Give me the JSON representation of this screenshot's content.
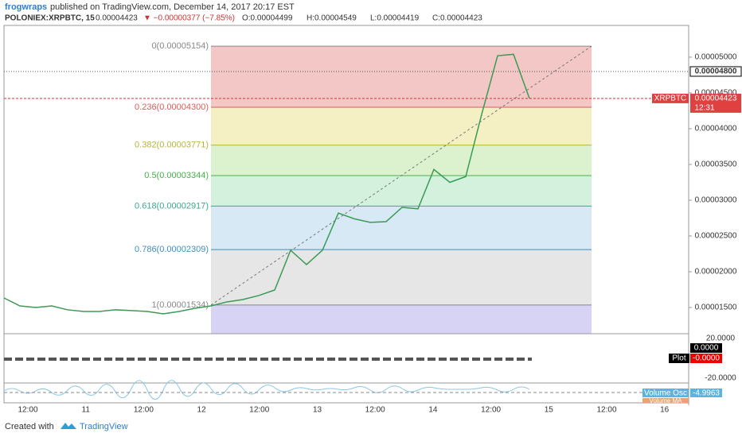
{
  "header": {
    "publisher": "frogwraps",
    "published": "published on TradingView.com, December 14, 2017 20:17 EST",
    "symbol": "POLONIEX:XRPBTC, 15",
    "last": "0.00004423",
    "change": "▼ −0.00000377 (−7.85%)",
    "ohlc": [
      "O:0.00004499",
      "H:0.00004549",
      "L:0.00004419",
      "C:0.00004423"
    ]
  },
  "chart_data": {
    "type": "line",
    "series": [
      {
        "name": "XRPBTC",
        "color": "#3a9b55",
        "values": [
          1.633e-05,
          1.522e-05,
          1.5e-05,
          1.522e-05,
          1.467e-05,
          1.444e-05,
          1.444e-05,
          1.467e-05,
          1.456e-05,
          1.444e-05,
          1.411e-05,
          1.444e-05,
          1.489e-05,
          1.522e-05,
          1.578e-05,
          1.611e-05,
          1.667e-05,
          1.744e-05,
          2.3e-05,
          2.1e-05,
          2.3e-05,
          2.82e-05,
          2.74e-05,
          2.69e-05,
          2.7e-05,
          2.9e-05,
          2.88e-05,
          3.43e-05,
          3.25e-05,
          3.33e-05,
          4.2e-05,
          5.02e-05,
          5.04e-05,
          4.423e-05
        ]
      }
    ],
    "ylim": [
      1.133e-05,
      5.444e-05
    ],
    "yticks": [
      {
        "value": 1.5e-05,
        "label": "0.00001500"
      },
      {
        "value": 2e-05,
        "label": "0.00002000"
      },
      {
        "value": 2.5e-05,
        "label": "0.00002500"
      },
      {
        "value": 3e-05,
        "label": "0.00003000"
      },
      {
        "value": 3.5e-05,
        "label": "0.00003500"
      },
      {
        "value": 4e-05,
        "label": "0.00004000"
      },
      {
        "value": 4.5e-05,
        "label": "0.00004500"
      },
      {
        "value": 5e-05,
        "label": "0.00005000"
      }
    ],
    "x_labels": [
      "12:00",
      "11",
      "12:00",
      "12",
      "12:00",
      "13",
      "12:00",
      "14",
      "12:00",
      "15",
      "12:00",
      "16"
    ],
    "fib_levels": [
      {
        "value": 5.154e-05,
        "label": "0(0.00005154)",
        "color": "#888888",
        "fill": "#f4c7c7"
      },
      {
        "value": 4.3e-05,
        "label": "0.236(0.00004300)",
        "color": "#e05a5a",
        "fill": "#f4f0c4"
      },
      {
        "value": 3.771e-05,
        "label": "0.382(0.00003771)",
        "color": "#b5b53a",
        "fill": "#dcf2cf"
      },
      {
        "value": 3.344e-05,
        "label": "0.5(0.00003344)",
        "color": "#48b04c",
        "fill": "#d3f1dd"
      },
      {
        "value": 2.917e-05,
        "label": "0.618(0.00002917)",
        "color": "#3aa78f",
        "fill": "#d6e9f5"
      },
      {
        "value": 2.309e-05,
        "label": "0.786(0.00002309)",
        "color": "#3f8fc1",
        "fill": "#e6e6e6"
      },
      {
        "value": 1.534e-05,
        "label": "1(0.00001534)",
        "color": "#888888",
        "fill": "#d6d3f5"
      }
    ],
    "price_line": {
      "value": 4.8e-05,
      "label": "0.00004800"
    },
    "last_tag": {
      "name": "XRPBTC",
      "label": "0.00004423",
      "value": 4.423e-05,
      "time": "12:31"
    },
    "indicators": {
      "plot_name": "Plot",
      "plot_a": "0.0000",
      "plot_b": "-0.0000",
      "top": "20.0000",
      "bottom": "-20.0000",
      "osc_name": "Volume Osc",
      "osc_value": "-4.9963",
      "ma_name": "Volume MA"
    }
  },
  "footer": {
    "created": "Created with",
    "brand": "TradingView"
  }
}
